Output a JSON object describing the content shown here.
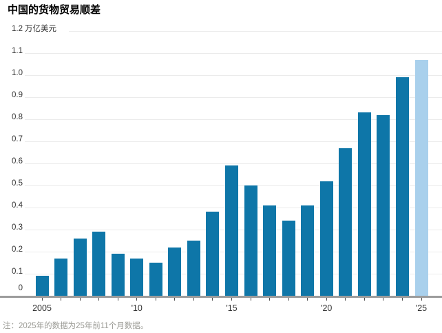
{
  "header": {
    "title": "中国的货物贸易顺差"
  },
  "chart_data": {
    "type": "bar",
    "title": "中国的货物贸易顺差",
    "unit_label": "万亿美元",
    "ylabel": "万亿美元",
    "xlabel": "",
    "ylim": [
      0,
      1.2
    ],
    "grid": true,
    "categories": [
      2005,
      2006,
      2007,
      2008,
      2009,
      2010,
      2011,
      2012,
      2013,
      2014,
      2015,
      2016,
      2017,
      2018,
      2019,
      2020,
      2021,
      2022,
      2023,
      2024,
      2025
    ],
    "values": [
      0.09,
      0.17,
      0.26,
      0.29,
      0.19,
      0.17,
      0.15,
      0.22,
      0.25,
      0.38,
      0.59,
      0.5,
      0.41,
      0.34,
      0.41,
      0.52,
      0.67,
      0.83,
      0.82,
      0.99,
      1.07
    ],
    "highlight_year": 2025,
    "y_ticks": [
      {
        "value": 0,
        "label": "0"
      },
      {
        "value": 0.1,
        "label": "0.1"
      },
      {
        "value": 0.2,
        "label": "0.2"
      },
      {
        "value": 0.3,
        "label": "0.3"
      },
      {
        "value": 0.4,
        "label": "0.4"
      },
      {
        "value": 0.5,
        "label": "0.5"
      },
      {
        "value": 0.6,
        "label": "0.6"
      },
      {
        "value": 0.7,
        "label": "0.7"
      },
      {
        "value": 0.8,
        "label": "0.8"
      },
      {
        "value": 0.9,
        "label": "0.9"
      },
      {
        "value": 1.0,
        "label": "1.0"
      },
      {
        "value": 1.1,
        "label": "1.1"
      },
      {
        "value": 1.2,
        "label": "1.2"
      }
    ],
    "x_tick_labels": [
      {
        "year": 2005,
        "label": "2005"
      },
      {
        "year": 2010,
        "label": "'10"
      },
      {
        "year": 2015,
        "label": "'15"
      },
      {
        "year": 2020,
        "label": "'20"
      },
      {
        "year": 2025,
        "label": "'25"
      }
    ],
    "colors": {
      "bar": "#0e76a8",
      "bar_highlight": "#a9d0ec",
      "grid": "#ebebeb",
      "axis": "#9c9c9c",
      "tick": "#4d4d4d",
      "label": "#333333",
      "title": "#000000",
      "note": "#9a9a94"
    }
  },
  "footer": {
    "note": "注：2025年的数据为25年前11个月数据。"
  }
}
